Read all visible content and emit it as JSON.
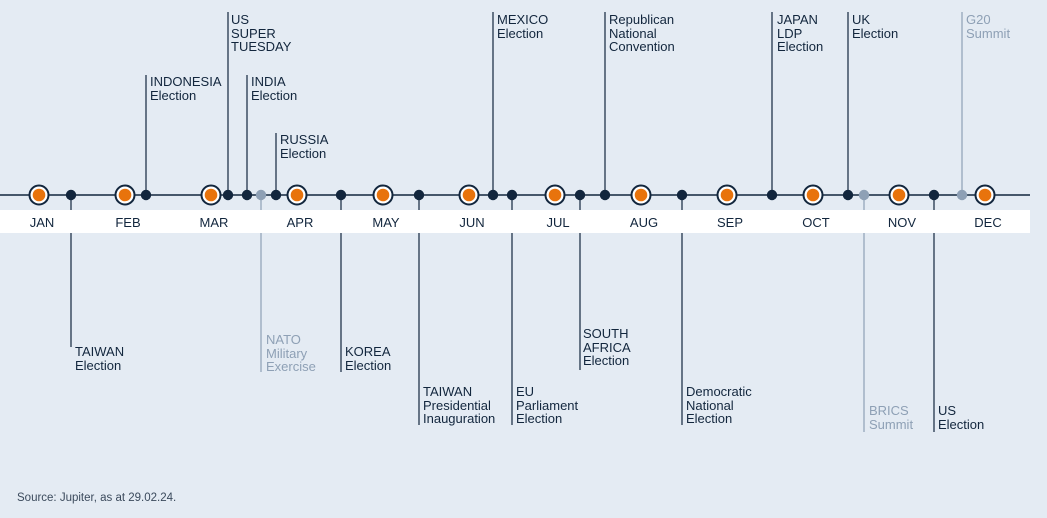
{
  "source": "Source: Jupiter, as at 29.02.24.",
  "colors": {
    "background": "#e4ebf3",
    "axis": "#12263d",
    "month_marker_fill": "#e8730c",
    "event_dot": "#12263d",
    "muted_dot": "#8ea0b5",
    "muted_text": "#8ea0b5"
  },
  "months": [
    "JAN",
    "FEB",
    "MAR",
    "APR",
    "MAY",
    "JUN",
    "JUL",
    "AUG",
    "SEP",
    "OCT",
    "NOV",
    "DEC"
  ],
  "events": [
    {
      "id": "taiwan-election",
      "label": "TAIWAN\nElection",
      "side": "below",
      "muted": false
    },
    {
      "id": "indonesia-election",
      "label": "INDONESIA\nElection",
      "side": "above",
      "muted": false
    },
    {
      "id": "us-super-tuesday",
      "label": "US\nSUPER\nTUESDAY",
      "side": "above",
      "muted": false
    },
    {
      "id": "india-election",
      "label": "INDIA\nElection",
      "side": "above",
      "muted": false
    },
    {
      "id": "nato-military-exercise",
      "label": "NATO\nMilitary\nExercise",
      "side": "below",
      "muted": true
    },
    {
      "id": "russia-election",
      "label": "RUSSIA\nElection",
      "side": "above",
      "muted": false
    },
    {
      "id": "korea-election",
      "label": "KOREA\nElection",
      "side": "below",
      "muted": false
    },
    {
      "id": "taiwan-presidential-inauguration",
      "label": "TAIWAN\nPresidential\nInauguration",
      "side": "below",
      "muted": false
    },
    {
      "id": "mexico-election",
      "label": "MEXICO\nElection",
      "side": "above",
      "muted": false
    },
    {
      "id": "eu-parliament-election",
      "label": "EU\nParliament\nElection",
      "side": "below",
      "muted": false
    },
    {
      "id": "south-africa-election",
      "label": "SOUTH\nAFRICA\nElection",
      "side": "below",
      "muted": false
    },
    {
      "id": "republican-national-convention",
      "label": "Republican\nNational\nConvention",
      "side": "above",
      "muted": false
    },
    {
      "id": "democratic-national-election",
      "label": "Democratic\nNational\nElection",
      "side": "below",
      "muted": false
    },
    {
      "id": "japan-ldp-election",
      "label": "JAPAN\nLDP\nElection",
      "side": "above",
      "muted": false
    },
    {
      "id": "uk-election",
      "label": "UK\nElection",
      "side": "above",
      "muted": false
    },
    {
      "id": "brics-summit",
      "label": "BRICS\nSummit",
      "side": "below",
      "muted": true
    },
    {
      "id": "us-election",
      "label": "US\nElection",
      "side": "below",
      "muted": false
    },
    {
      "id": "g20-summit",
      "label": "G20\nSummit",
      "side": "above",
      "muted": true
    }
  ]
}
